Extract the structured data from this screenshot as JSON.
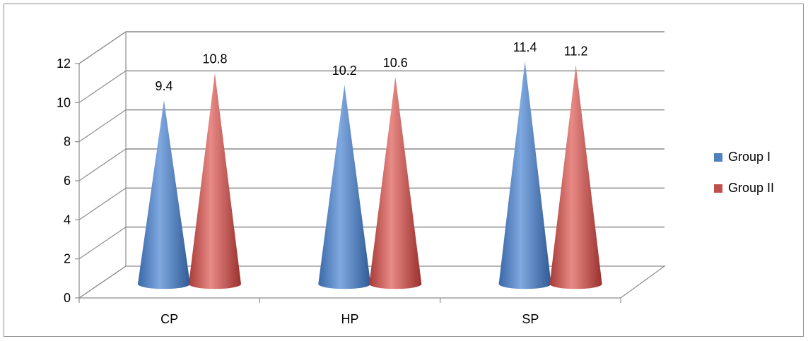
{
  "chart_data": {
    "type": "bar",
    "bar_shape": "cone",
    "three_d": true,
    "categories": [
      "CP",
      "HP",
      "SP"
    ],
    "series": [
      {
        "name": "Group I",
        "values": [
          9.4,
          10.2,
          11.4
        ],
        "color": "#4f81bd"
      },
      {
        "name": "Group II",
        "values": [
          10.8,
          10.6,
          11.2
        ],
        "color": "#c0504d"
      }
    ],
    "ylim": [
      0,
      12
    ],
    "yticks": [
      0,
      2,
      4,
      6,
      8,
      10,
      12
    ],
    "grid": true,
    "legend_position": "right",
    "data_labels": true
  }
}
